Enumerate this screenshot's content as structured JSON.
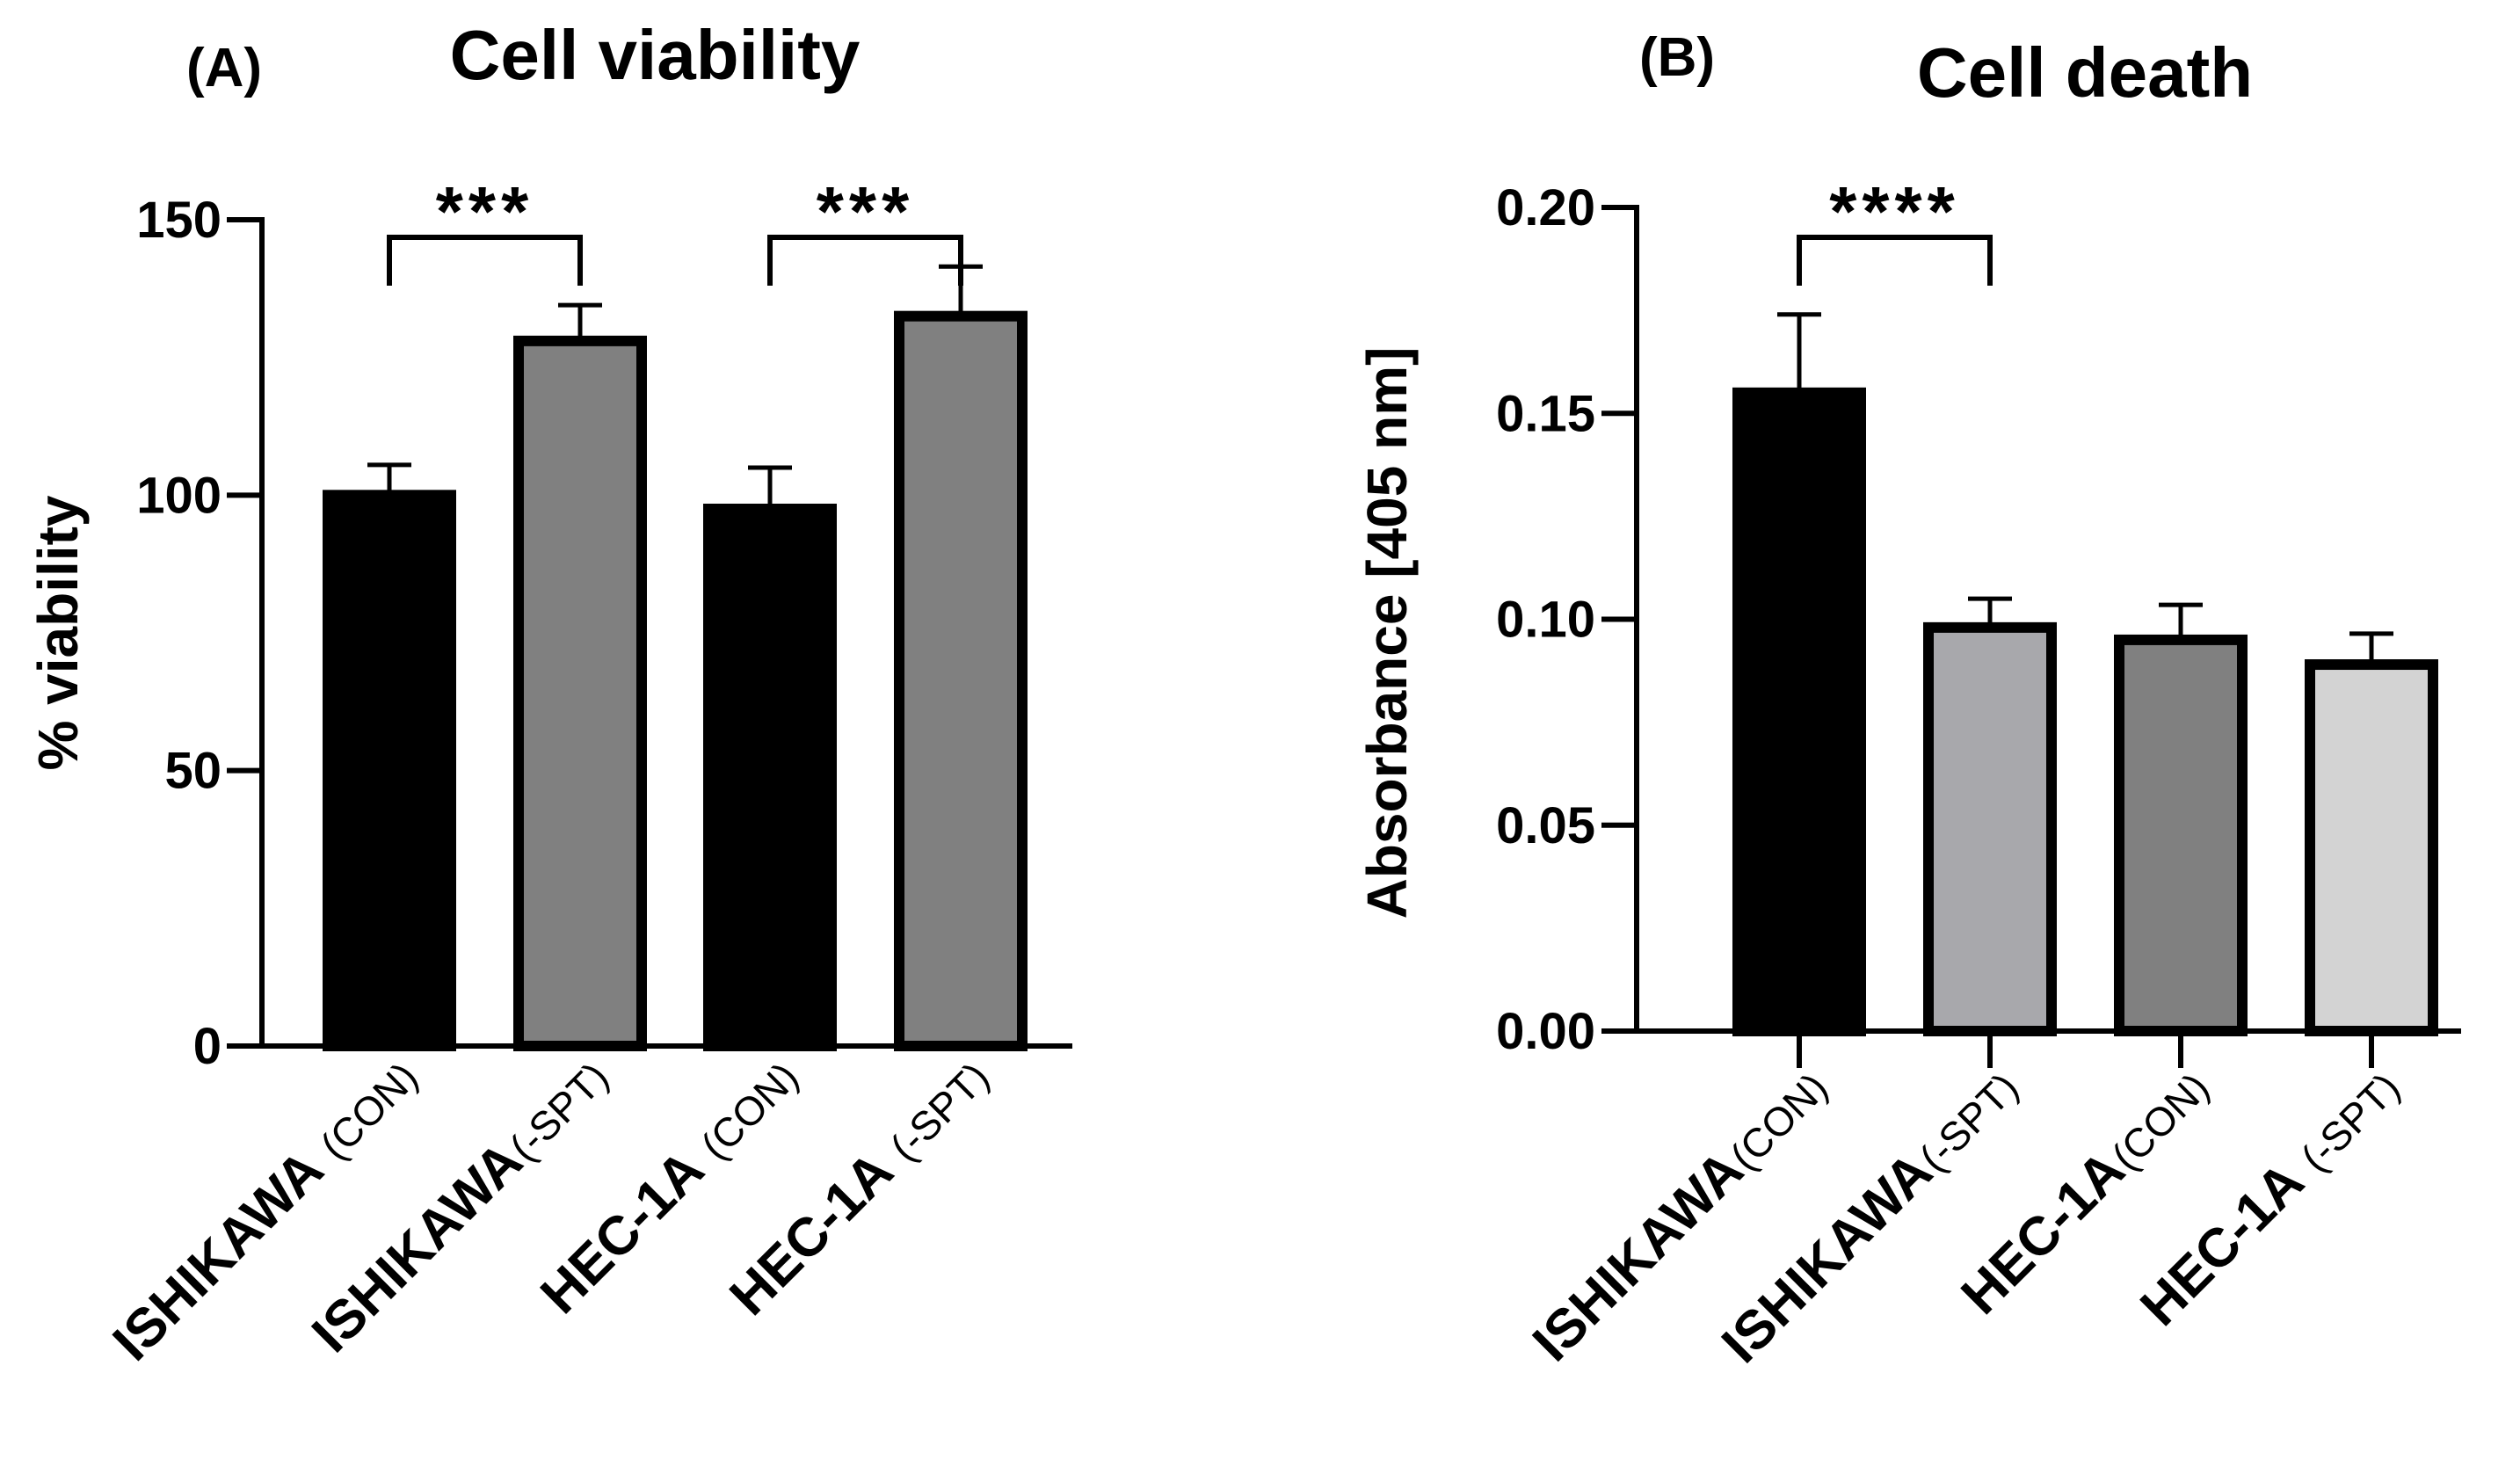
{
  "chart_data": [
    {
      "type": "bar",
      "panel_label": "(A)",
      "title": "Cell viability",
      "xlabel": "",
      "ylabel": "% viability",
      "ylim": [
        0,
        150
      ],
      "yticks": [
        0,
        50,
        100,
        150
      ],
      "ytick_labels": [
        "0",
        "50",
        "100",
        "150"
      ],
      "categories": [
        {
          "main": "ISHIKAWA",
          "sub": "(CON)",
          "gap": true
        },
        {
          "main": "ISHIKAWA",
          "sub": "(-SPT)",
          "gap": false
        },
        {
          "main": "HEC-1A",
          "sub": "(CON)",
          "gap": true
        },
        {
          "main": "HEC-1A",
          "sub": "(-SPT)",
          "gap": true
        }
      ],
      "values": [
        100,
        128,
        97.5,
        132.5
      ],
      "errors": [
        5.5,
        6.5,
        7.5,
        9
      ],
      "colors": [
        "#000000",
        "#808080",
        "#000000",
        "#808080"
      ],
      "significance": [
        {
          "from": 0,
          "to": 1,
          "label": "***"
        },
        {
          "from": 2,
          "to": 3,
          "label": "***"
        }
      ],
      "x_ticks_below_axis": false
    },
    {
      "type": "bar",
      "panel_label": "(B)",
      "title": "Cell death",
      "xlabel": "",
      "ylabel": "Absorbance [405 nm]",
      "ylim": [
        0,
        0.2
      ],
      "yticks": [
        0,
        0.05,
        0.1,
        0.15,
        0.2
      ],
      "ytick_labels": [
        "0.00",
        "0.05",
        "0.10",
        "0.15",
        "0.20"
      ],
      "categories": [
        {
          "main": "ISHIKAWA",
          "sub": "(CON)",
          "gap": false
        },
        {
          "main": "ISHIKAWA",
          "sub": "(-SPT)",
          "gap": false
        },
        {
          "main": "HEC-1A",
          "sub": "(CON)",
          "gap": false
        },
        {
          "main": "HEC-1A",
          "sub": "(-SPT)",
          "gap": true
        }
      ],
      "values": [
        0.155,
        0.098,
        0.095,
        0.089
      ],
      "errors": [
        0.019,
        0.007,
        0.0085,
        0.0075
      ],
      "colors": [
        "#000000",
        "#a8a8ac",
        "#808080",
        "#d3d3d3"
      ],
      "significance": [
        {
          "from": 0,
          "to": 1,
          "label": "****"
        }
      ],
      "x_ticks_below_axis": true
    }
  ]
}
